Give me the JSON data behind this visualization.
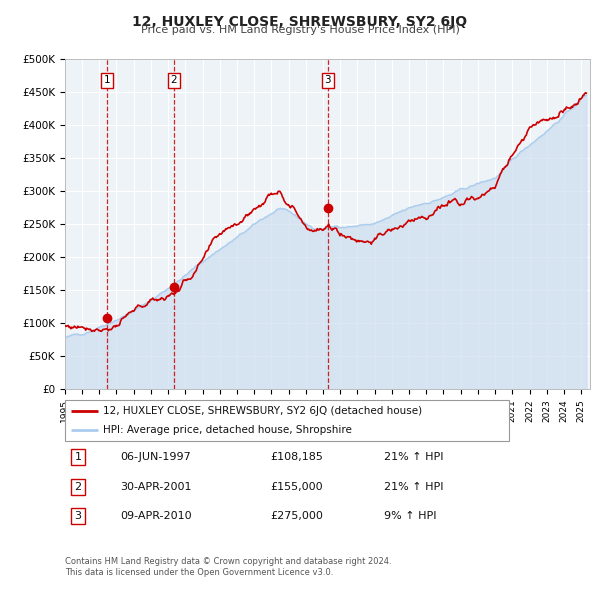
{
  "title": "12, HUXLEY CLOSE, SHREWSBURY, SY2 6JQ",
  "subtitle": "Price paid vs. HM Land Registry's House Price Index (HPI)",
  "legend_line1": "12, HUXLEY CLOSE, SHREWSBURY, SY2 6JQ (detached house)",
  "legend_line2": "HPI: Average price, detached house, Shropshire",
  "property_color": "#cc0000",
  "hpi_color": "#aaccee",
  "hpi_fill_color": "#ccddef",
  "background_color": "#eef3f8",
  "plot_bg_color": "#eef3f8",
  "grid_color": "#ffffff",
  "ylim": [
    0,
    500000
  ],
  "yticks": [
    0,
    50000,
    100000,
    150000,
    200000,
    250000,
    300000,
    350000,
    400000,
    450000,
    500000
  ],
  "ytick_labels": [
    "£0",
    "£50K",
    "£100K",
    "£150K",
    "£200K",
    "£250K",
    "£300K",
    "£350K",
    "£400K",
    "£450K",
    "£500K"
  ],
  "xmin": 1995.0,
  "xmax": 2025.5,
  "sale_dates": [
    1997.44,
    2001.33,
    2010.27
  ],
  "sale_prices": [
    108185,
    155000,
    275000
  ],
  "sale_labels": [
    "1",
    "2",
    "3"
  ],
  "vline_color": "#cc0000",
  "table_entries": [
    {
      "num": "1",
      "date": "06-JUN-1997",
      "price": "£108,185",
      "pct": "21% ↑ HPI"
    },
    {
      "num": "2",
      "date": "30-APR-2001",
      "price": "£155,000",
      "pct": "21% ↑ HPI"
    },
    {
      "num": "3",
      "date": "09-APR-2010",
      "price": "£275,000",
      "pct": "9% ↑ HPI"
    }
  ],
  "footnote1": "Contains HM Land Registry data © Crown copyright and database right 2024.",
  "footnote2": "This data is licensed under the Open Government Licence v3.0."
}
